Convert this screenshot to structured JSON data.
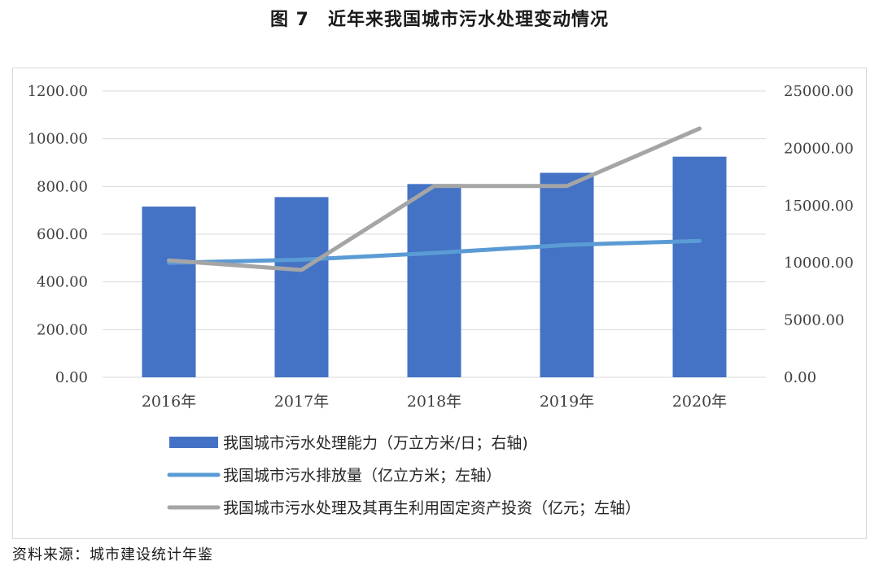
{
  "title": "图 7　近年来我国城市污水处理变动情况",
  "source": "资料来源：城市建设统计年鉴",
  "colors": {
    "bar": "#4472C4",
    "line_discharge": "#5B9BD5",
    "line_investment": "#A5A5A5",
    "grid": "#d9d9d9"
  },
  "chart_data": {
    "type": "bar",
    "categories": [
      "2016年",
      "2017年",
      "2018年",
      "2019年",
      "2020年"
    ],
    "left_axis": {
      "ylim": [
        0,
        1200
      ],
      "ticks": [
        "0.00",
        "200.00",
        "400.00",
        "600.00",
        "800.00",
        "1000.00",
        "1200.00"
      ]
    },
    "right_axis": {
      "ylim": [
        0,
        25000
      ],
      "ticks": [
        "0.00",
        "5000.00",
        "10000.00",
        "15000.00",
        "20000.00",
        "25000.00"
      ]
    },
    "series": [
      {
        "name": "我国城市污水处理能力（万立方米/日；右轴)",
        "type": "bar",
        "axis": "right",
        "values": [
          14910,
          15740,
          16880,
          17860,
          19270
        ]
      },
      {
        "name": "我国城市污水排放量（亿立方米；左轴）",
        "type": "line",
        "axis": "left",
        "values": [
          480,
          493,
          521,
          555,
          572
        ]
      },
      {
        "name": "我国城市污水处理及其再生利用固定资产投资（亿元；左轴）",
        "type": "line",
        "axis": "left",
        "values": [
          490,
          450,
          802,
          802,
          1043
        ]
      }
    ],
    "grid": true,
    "legend_position": "bottom"
  }
}
